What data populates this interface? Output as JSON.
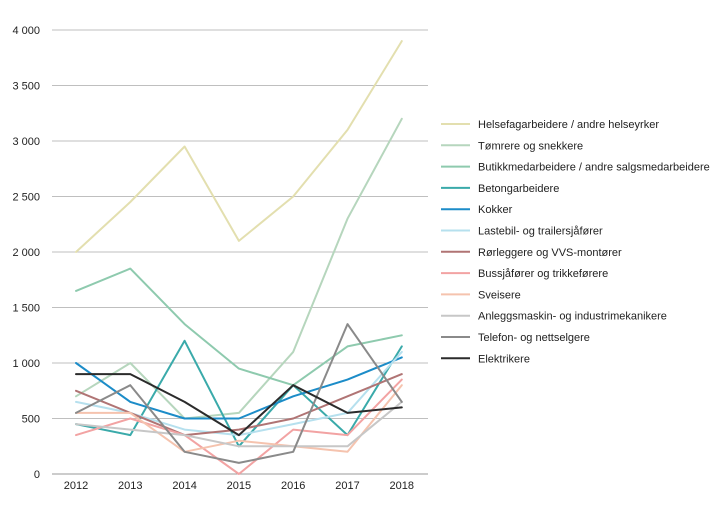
{
  "chart_data": {
    "type": "line",
    "title": "",
    "xlabel": "",
    "ylabel": "",
    "x": [
      "2012",
      "2013",
      "2014",
      "2015",
      "2016",
      "2017",
      "2018"
    ],
    "y_ticks": [
      {
        "value": 0,
        "label": "0"
      },
      {
        "value": 500,
        "label": "500"
      },
      {
        "value": 1000,
        "label": "1 000"
      },
      {
        "value": 1500,
        "label": "1 500"
      },
      {
        "value": 2000,
        "label": "2 000"
      },
      {
        "value": 2500,
        "label": "2 500"
      },
      {
        "value": 3000,
        "label": "3 000"
      },
      {
        "value": 3500,
        "label": "3 500"
      },
      {
        "value": 4000,
        "label": "4 000"
      }
    ],
    "ylim": [
      0,
      4000
    ],
    "grid": true,
    "legend_position": "right",
    "series": [
      {
        "name": "Helsefagarbeidere / andre helseyrker",
        "color": "#e3dfaf",
        "values": [
          2000,
          2450,
          2950,
          2100,
          2500,
          3100,
          3900
        ]
      },
      {
        "name": "Tømrere og snekkere",
        "color": "#b6d6bd",
        "values": [
          700,
          1000,
          500,
          550,
          1100,
          2300,
          3200
        ]
      },
      {
        "name": "Butikkmedarbeidere / andre salgsmedarbeidere",
        "color": "#8ecaae",
        "values": [
          1650,
          1850,
          1350,
          950,
          800,
          1150,
          1250
        ]
      },
      {
        "name": "Betongarbeidere",
        "color": "#3aaaaa",
        "values": [
          450,
          350,
          1200,
          250,
          800,
          350,
          1150
        ]
      },
      {
        "name": "Kokker",
        "color": "#1c8cc8",
        "values": [
          1000,
          650,
          500,
          500,
          700,
          850,
          1050
        ]
      },
      {
        "name": "Lastebil- og trailersjåfører",
        "color": "#b6e0ee",
        "values": [
          650,
          550,
          400,
          350,
          450,
          550,
          1100
        ]
      },
      {
        "name": "Rørleggere og VVS-montører",
        "color": "#b07474",
        "values": [
          750,
          550,
          350,
          400,
          500,
          700,
          900
        ]
      },
      {
        "name": "Bussjåfører og trikkeførere",
        "color": "#f2a3a3",
        "values": [
          350,
          500,
          350,
          0,
          400,
          350,
          850
        ]
      },
      {
        "name": "Sveisere",
        "color": "#f5c3ae",
        "values": [
          550,
          550,
          200,
          300,
          250,
          200,
          800
        ]
      },
      {
        "name": "Anleggsmaskin- og industrimekanikere",
        "color": "#c7c7c7",
        "values": [
          450,
          400,
          350,
          250,
          250,
          250,
          650
        ]
      },
      {
        "name": "Telefon- og nettselgere",
        "color": "#8a8a8a",
        "values": [
          550,
          800,
          200,
          100,
          200,
          1350,
          650
        ]
      },
      {
        "name": "Elektrikere",
        "color": "#2b2b2b",
        "values": [
          900,
          900,
          650,
          350,
          800,
          550,
          600
        ]
      }
    ]
  }
}
